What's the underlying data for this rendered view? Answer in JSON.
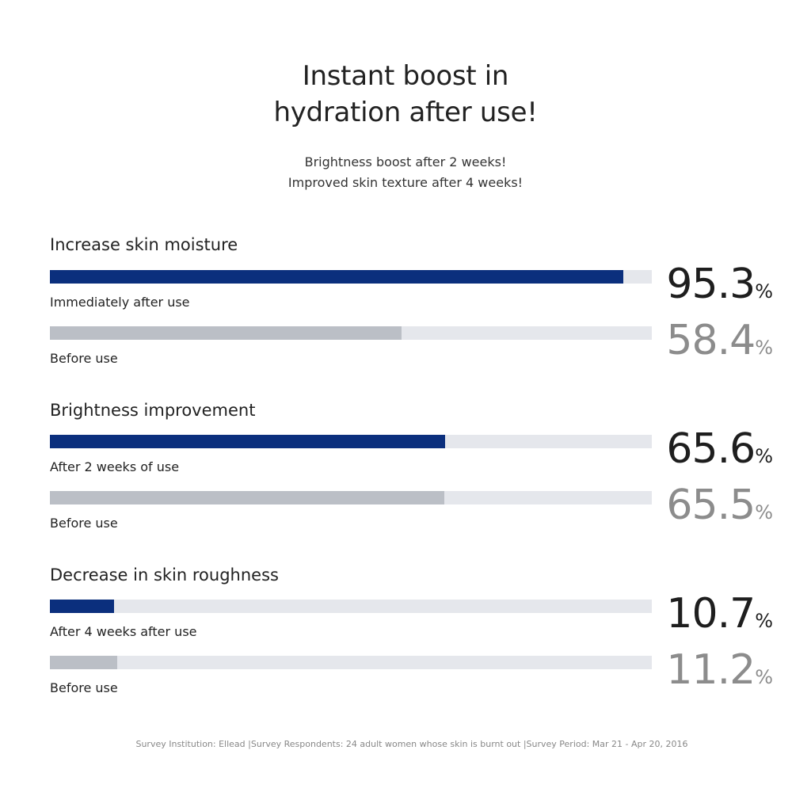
{
  "header": {
    "title_line1": "Instant boost in",
    "title_line2": "hydration after use!",
    "subtitle_line1": "Brightness boost after 2 weeks!",
    "subtitle_line2": "Improved skin texture after 4 weeks!"
  },
  "colors": {
    "after_bar": "#0b2f7d",
    "before_bar": "#bbbfc6",
    "track": "#e5e7ec",
    "after_value": "#1e1e1e",
    "before_value": "#8c8c8c"
  },
  "groups": [
    {
      "title": "Increase skin moisture",
      "after": {
        "label": "Immediately after use",
        "value": "95.3",
        "unit": "%"
      },
      "before": {
        "label": "Before use",
        "value": "58.4",
        "unit": "%"
      }
    },
    {
      "title": "Brightness improvement",
      "after": {
        "label": "After 2 weeks of use",
        "value": "65.6",
        "unit": "%"
      },
      "before": {
        "label": "Before use",
        "value": "65.5",
        "unit": "%"
      }
    },
    {
      "title": "Decrease in skin roughness",
      "after": {
        "label": "After 4 weeks after use",
        "value": "10.7",
        "unit": "%"
      },
      "before": {
        "label": "Before use",
        "value": "11.2",
        "unit": "%"
      }
    }
  ],
  "footer": "Survey Institution: Ellead |Survey Respondents: 24 adult women whose skin is burnt out |Survey Period: Mar 21 - Apr 20, 2016",
  "chart_data": {
    "type": "bar",
    "orientation": "horizontal",
    "categories": [
      "Increase skin moisture",
      "Brightness improvement",
      "Decrease in skin roughness"
    ],
    "series": [
      {
        "name": "after",
        "labels": [
          "Immediately after use",
          "After 2 weeks of use",
          "After 4 weeks after use"
        ],
        "values": [
          95.3,
          65.6,
          10.7
        ]
      },
      {
        "name": "before",
        "labels": [
          "Before use",
          "Before use",
          "Before use"
        ],
        "values": [
          58.4,
          65.5,
          11.2
        ]
      }
    ],
    "xlim": [
      0,
      100
    ],
    "unit": "%",
    "grid": false,
    "legend": "none"
  }
}
